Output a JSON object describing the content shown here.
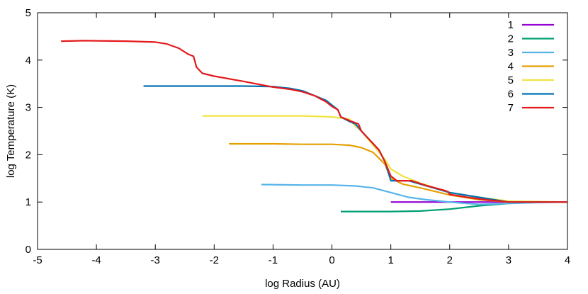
{
  "chart_data": {
    "type": "line",
    "title": "",
    "xlabel": "log Radius (AU)",
    "ylabel": "log Temperature (K)",
    "xlim": [
      -5,
      4
    ],
    "ylim": [
      0,
      5
    ],
    "xticks": [
      "-5",
      "-4",
      "-3",
      "-2",
      "-1",
      "0",
      "1",
      "2",
      "3",
      "4"
    ],
    "yticks": [
      "0",
      "1",
      "2",
      "3",
      "4",
      "5"
    ],
    "grid": false,
    "legend_position": "top-right",
    "series": [
      {
        "name": "1",
        "color": "#9400d3",
        "points": [
          [
            1.0,
            1.0
          ],
          [
            2.0,
            1.0
          ],
          [
            3.0,
            1.0
          ],
          [
            4.0,
            1.0
          ]
        ]
      },
      {
        "name": "2",
        "color": "#009e73",
        "points": [
          [
            0.15,
            0.8
          ],
          [
            0.5,
            0.8
          ],
          [
            1.0,
            0.8
          ],
          [
            1.5,
            0.81
          ],
          [
            2.0,
            0.85
          ],
          [
            2.5,
            0.92
          ],
          [
            3.0,
            0.97
          ],
          [
            3.5,
            1.0
          ],
          [
            4.0,
            1.0
          ]
        ]
      },
      {
        "name": "3",
        "color": "#56b4e9",
        "points": [
          [
            -1.2,
            1.37
          ],
          [
            -0.5,
            1.36
          ],
          [
            0.0,
            1.36
          ],
          [
            0.4,
            1.34
          ],
          [
            0.7,
            1.3
          ],
          [
            1.0,
            1.2
          ],
          [
            1.3,
            1.1
          ],
          [
            1.6,
            1.05
          ],
          [
            2.0,
            1.0
          ],
          [
            2.5,
            0.95
          ],
          [
            3.0,
            0.97
          ],
          [
            3.5,
            0.99
          ],
          [
            4.0,
            1.0
          ]
        ]
      },
      {
        "name": "4",
        "color": "#e69f00",
        "points": [
          [
            -1.75,
            2.23
          ],
          [
            -1.0,
            2.23
          ],
          [
            -0.5,
            2.22
          ],
          [
            -0.2,
            2.22
          ],
          [
            0.0,
            2.22
          ],
          [
            0.3,
            2.2
          ],
          [
            0.5,
            2.15
          ],
          [
            0.7,
            2.05
          ],
          [
            0.9,
            1.8
          ],
          [
            1.0,
            1.5
          ],
          [
            1.2,
            1.38
          ],
          [
            1.5,
            1.3
          ],
          [
            2.0,
            1.15
          ],
          [
            2.5,
            1.05
          ],
          [
            3.0,
            1.0
          ],
          [
            4.0,
            1.0
          ]
        ]
      },
      {
        "name": "5",
        "color": "#f0e442",
        "points": [
          [
            -2.2,
            2.82
          ],
          [
            -1.5,
            2.82
          ],
          [
            -1.0,
            2.82
          ],
          [
            -0.5,
            2.82
          ],
          [
            0.0,
            2.8
          ],
          [
            0.3,
            2.75
          ],
          [
            0.4,
            2.6
          ],
          [
            0.5,
            2.5
          ],
          [
            0.7,
            2.2
          ],
          [
            0.9,
            1.9
          ],
          [
            1.0,
            1.7
          ],
          [
            1.2,
            1.55
          ],
          [
            1.5,
            1.4
          ],
          [
            2.0,
            1.2
          ],
          [
            2.5,
            1.1
          ],
          [
            3.0,
            1.02
          ],
          [
            4.0,
            1.0
          ]
        ]
      },
      {
        "name": "6",
        "color": "#0072b2",
        "points": [
          [
            -3.2,
            3.45
          ],
          [
            -2.5,
            3.45
          ],
          [
            -1.5,
            3.45
          ],
          [
            -1.0,
            3.44
          ],
          [
            -0.7,
            3.4
          ],
          [
            -0.5,
            3.35
          ],
          [
            -0.3,
            3.25
          ],
          [
            -0.1,
            3.15
          ],
          [
            0.0,
            3.05
          ],
          [
            0.1,
            2.95
          ],
          [
            0.15,
            2.8
          ],
          [
            0.3,
            2.7
          ],
          [
            0.4,
            2.65
          ],
          [
            0.5,
            2.5
          ],
          [
            0.65,
            2.3
          ],
          [
            0.8,
            2.1
          ],
          [
            0.9,
            1.85
          ],
          [
            1.0,
            1.45
          ],
          [
            1.3,
            1.45
          ],
          [
            2.0,
            1.2
          ],
          [
            2.5,
            1.1
          ],
          [
            3.0,
            1.0
          ],
          [
            3.5,
            1.0
          ],
          [
            4.0,
            1.0
          ]
        ]
      },
      {
        "name": "7",
        "color": "#e41a1c",
        "points": [
          [
            -4.6,
            4.4
          ],
          [
            -4.2,
            4.41
          ],
          [
            -3.5,
            4.4
          ],
          [
            -3.0,
            4.38
          ],
          [
            -2.8,
            4.34
          ],
          [
            -2.6,
            4.25
          ],
          [
            -2.45,
            4.13
          ],
          [
            -2.35,
            4.08
          ],
          [
            -2.3,
            3.85
          ],
          [
            -2.2,
            3.72
          ],
          [
            -2.0,
            3.66
          ],
          [
            -1.5,
            3.55
          ],
          [
            -1.0,
            3.43
          ],
          [
            -0.7,
            3.38
          ],
          [
            -0.5,
            3.33
          ],
          [
            -0.3,
            3.25
          ],
          [
            -0.1,
            3.12
          ],
          [
            0.0,
            3.02
          ],
          [
            0.1,
            2.95
          ],
          [
            0.15,
            2.8
          ],
          [
            0.3,
            2.72
          ],
          [
            0.45,
            2.65
          ],
          [
            0.5,
            2.5
          ],
          [
            0.65,
            2.3
          ],
          [
            0.8,
            2.1
          ],
          [
            0.9,
            1.85
          ],
          [
            1.0,
            1.55
          ],
          [
            1.1,
            1.45
          ],
          [
            1.35,
            1.45
          ],
          [
            1.6,
            1.35
          ],
          [
            1.9,
            1.25
          ],
          [
            1.97,
            1.22
          ],
          [
            2.0,
            1.16
          ],
          [
            2.3,
            1.1
          ],
          [
            2.6,
            1.05
          ],
          [
            3.0,
            1.0
          ],
          [
            3.5,
            1.0
          ],
          [
            4.0,
            1.0
          ]
        ]
      }
    ]
  }
}
